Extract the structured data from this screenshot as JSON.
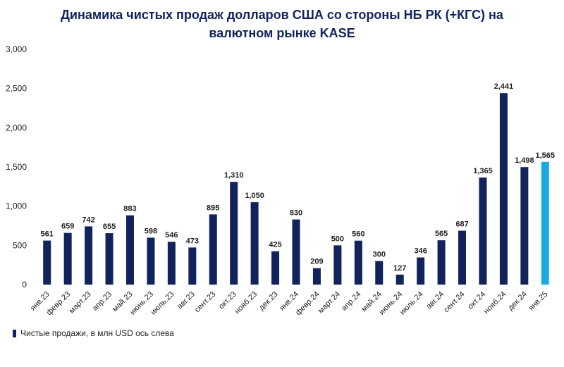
{
  "chart_data": {
    "type": "bar",
    "title_line1": "Динамика чистых продаж долларов США со стороны НБ РК (+КГС) на",
    "title_line2": "валютном рынке KASE",
    "categories": [
      "янв.23",
      "февр.23",
      "март.23",
      "апр.23",
      "май.23",
      "июнь.23",
      "июль.23",
      "авг.23",
      "сент.23",
      "окт.23",
      "нояб.23",
      "дек.23",
      "янв.24",
      "февр.24",
      "март.24",
      "апр.24",
      "май.24",
      "июнь.24",
      "июль.24",
      "авг.24",
      "сент.24",
      "окт.24",
      "нояб.24",
      "дек.24",
      "янв.25"
    ],
    "values": [
      561,
      659,
      742,
      655,
      883,
      598,
      546,
      473,
      895,
      1310,
      1050,
      425,
      830,
      209,
      500,
      560,
      300,
      127,
      346,
      565,
      687,
      1365,
      2441,
      1498,
      1565
    ],
    "value_labels": [
      "561",
      "659",
      "742",
      "655",
      "883",
      "598",
      "546",
      "473",
      "895",
      "1,310",
      "1,050",
      "425",
      "830",
      "209",
      "500",
      "560",
      "300",
      "127",
      "346",
      "565",
      "687",
      "1,365",
      "2,441",
      "1,498",
      "1,565"
    ],
    "ylim": [
      0,
      3000
    ],
    "yticks": [
      0,
      500,
      1000,
      1500,
      2000,
      2500,
      3000
    ],
    "ytick_labels": [
      "0",
      "500",
      "1,000",
      "1,500",
      "2,000",
      "2,500",
      "3,000"
    ],
    "series": [
      {
        "name": "Чистые продажи, в млн USD ось слева",
        "values_ref": "values"
      }
    ],
    "colors": {
      "bar": "#12235b",
      "highlight": "#1ba9e6",
      "title": "#12235b"
    },
    "highlight_index": 24,
    "grid": false,
    "legend_position": "bottom-left"
  }
}
